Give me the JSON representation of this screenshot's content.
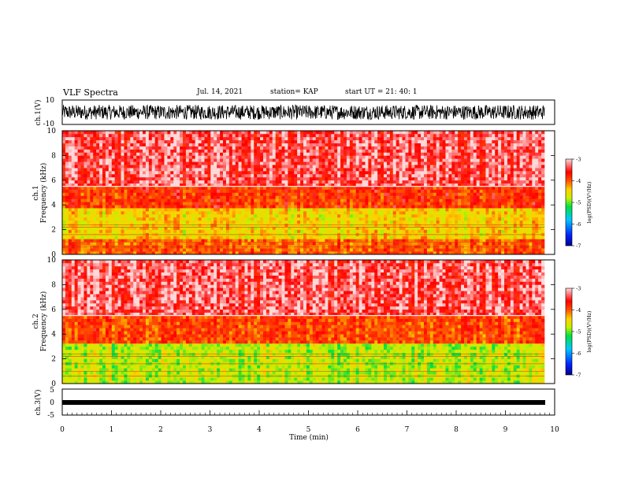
{
  "header": {
    "title": "VLF Spectra",
    "date": "Jul. 14, 2021",
    "station": "station= KAP",
    "start": "start UT = 21: 40: 1"
  },
  "colors": {
    "waveform": "#000000",
    "colormap": [
      "#00008a",
      "#0020ff",
      "#00c8ff",
      "#00e040",
      "#c8f000",
      "#ffd000",
      "#ff5000",
      "#ff0000",
      "#ffd8d8"
    ]
  },
  "chart_data": [
    {
      "type": "line",
      "panel": "ch1-waveform",
      "ylabel": "ch.1(V)",
      "yticks": [
        "10",
        "-10"
      ],
      "ylim": [
        -10,
        10
      ],
      "xlim": [
        0,
        10
      ],
      "note_values": "dense waveform, roughly ±6 V, data up to ~9.8 min"
    },
    {
      "type": "heatmap",
      "panel": "ch1-spectrogram",
      "ylabel": "ch.1\nFrequency (kHz)",
      "ylabel_line1": "ch.1",
      "ylabel_line2": "Frequency (kHz)",
      "yticks": [
        "0",
        "2",
        "4",
        "6",
        "8",
        "10"
      ],
      "ylim": [
        0,
        10
      ],
      "xlim": [
        0,
        10
      ],
      "colorbar": {
        "label": "log(PSD)(V²/Hz)",
        "ticks": [
          "-3",
          "-4",
          "-5",
          "-6",
          "-7"
        ],
        "range": [
          -7,
          -3
        ]
      },
      "bands": [
        {
          "from_khz": 0,
          "to_khz": 1.2,
          "log_psd": -4.0
        },
        {
          "from_khz": 1.2,
          "to_khz": 3.8,
          "log_psd": -4.6
        },
        {
          "from_khz": 3.8,
          "to_khz": 5.6,
          "log_psd": -3.8
        },
        {
          "from_khz": 5.6,
          "to_khz": 10,
          "log_psd": -3.3
        }
      ]
    },
    {
      "type": "heatmap",
      "panel": "ch2-spectrogram",
      "ylabel_line1": "ch.2",
      "ylabel_line2": "Frequency (kHz)",
      "yticks": [
        "0",
        "2",
        "4",
        "6",
        "8",
        "10"
      ],
      "ylim": [
        0,
        10
      ],
      "xlim": [
        0,
        10
      ],
      "colorbar": {
        "label": "log(PSD)(V²/Hz)",
        "ticks": [
          "-3",
          "-4",
          "-5",
          "-6",
          "-7"
        ],
        "range": [
          -7,
          -3
        ]
      },
      "bands": [
        {
          "from_khz": 0,
          "to_khz": 3.2,
          "log_psd": -5.0
        },
        {
          "from_khz": 3.2,
          "to_khz": 5.5,
          "log_psd": -3.9
        },
        {
          "from_khz": 5.5,
          "to_khz": 10,
          "log_psd": -3.3
        }
      ]
    },
    {
      "type": "line",
      "panel": "ch3-waveform",
      "ylabel": "ch.3(V)",
      "yticks": [
        "5",
        "0",
        "-5"
      ],
      "ylim": [
        -5,
        5
      ],
      "xlim": [
        0,
        10
      ],
      "xlabel": "Time (min)",
      "xticks": [
        "0",
        "1",
        "2",
        "3",
        "4",
        "5",
        "6",
        "7",
        "8",
        "9",
        "10"
      ],
      "note_values": "near-constant thick band at about 0 V"
    }
  ]
}
